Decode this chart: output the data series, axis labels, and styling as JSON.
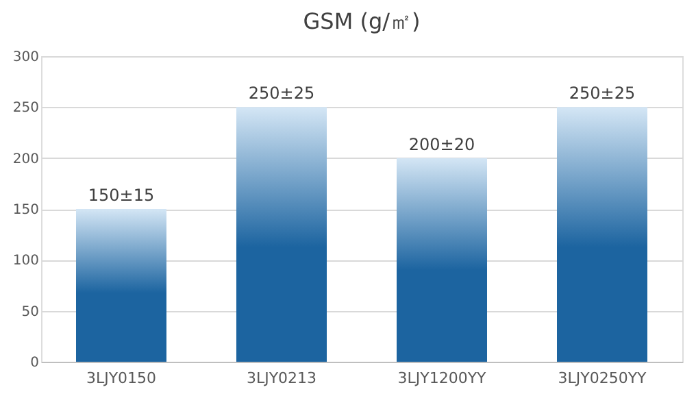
{
  "chart_data": {
    "type": "bar",
    "title": "GSM (g/㎡)",
    "categories": [
      "3LJY0150",
      "3LJY0213",
      "3LJY1200YY",
      "3LJY0250YY"
    ],
    "values": [
      150,
      250,
      200,
      250
    ],
    "value_labels": [
      "150±15",
      "250±25",
      "200±20",
      "250±25"
    ],
    "color": "#1c64a0",
    "ylim": [
      0,
      300
    ],
    "yticks": [
      0,
      50,
      100,
      150,
      200,
      250,
      300
    ],
    "grid": "y"
  }
}
